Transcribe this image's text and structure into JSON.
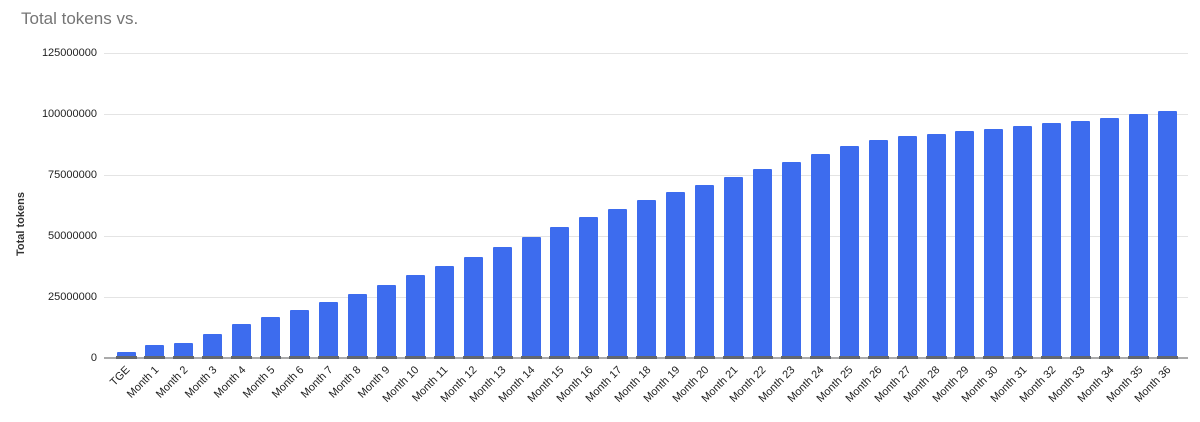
{
  "chart_data": {
    "type": "bar",
    "title": "Total tokens vs.",
    "xlabel": "",
    "ylabel": "Total tokens",
    "legend": "none",
    "grid": true,
    "ylim": [
      0,
      125000000
    ],
    "yticks": [
      0,
      25000000,
      50000000,
      75000000,
      100000000,
      125000000
    ],
    "ytick_labels": [
      "0",
      "25000000",
      "50000000",
      "75000000",
      "100000000",
      "125000000"
    ],
    "categories": [
      "TGE",
      "Month 1",
      "Month 2",
      "Month 3",
      "Month 4",
      "Month 5",
      "Month 6",
      "Month 7",
      "Month 8",
      "Month 9",
      "Month 10",
      "Month 11",
      "Month 12",
      "Month 13",
      "Month 14",
      "Month 15",
      "Month 16",
      "Month 17",
      "Month 18",
      "Month 19",
      "Month 20",
      "Month 21",
      "Month 22",
      "Month 23",
      "Month 24",
      "Month 25",
      "Month 26",
      "Month 27",
      "Month 28",
      "Month 29",
      "Month 30",
      "Month 31",
      "Month 32",
      "Month 33",
      "Month 34",
      "Month 35",
      "Month 36"
    ],
    "values": [
      2500000,
      5500000,
      6300000,
      10000000,
      14000000,
      16900000,
      19500000,
      22800000,
      26300000,
      30000000,
      33900000,
      37700000,
      41600000,
      45400000,
      49800000,
      53700000,
      57700000,
      61200000,
      64800000,
      67900000,
      70900000,
      74100000,
      77400000,
      80500000,
      83600000,
      86800000,
      89200000,
      90900000,
      92000000,
      92900000,
      94000000,
      95200000,
      96200000,
      97100000,
      98300000,
      100000000,
      101300000
    ],
    "colors": {
      "bar": "#3d6cee",
      "title_text": "#757575",
      "axis_text": "#1f1f1f",
      "y_axis_title_text": "#333333",
      "gridline": "#e4e4e4",
      "baseline": "#ababab",
      "base_tick": "#63676d",
      "background": "#ffffff"
    }
  }
}
